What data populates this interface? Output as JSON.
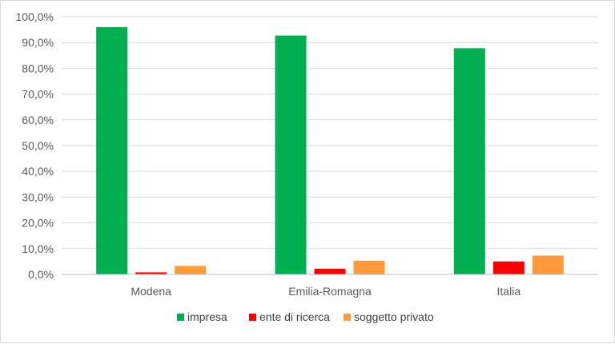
{
  "chart_data": {
    "type": "bar",
    "categories": [
      "Modena",
      "Emilia-Romagna",
      "Italia"
    ],
    "series": [
      {
        "name": "impresa",
        "color": "#00b050",
        "values": [
          96.0,
          92.7,
          87.8
        ]
      },
      {
        "name": "ente di ricerca",
        "color": "#ff0000",
        "values": [
          0.8,
          2.2,
          5.0
        ]
      },
      {
        "name": "soggetto privato",
        "color": "#ff9a3c",
        "values": [
          3.3,
          5.3,
          7.3
        ]
      }
    ],
    "ylim": [
      0,
      100
    ],
    "yticks": [
      0,
      10,
      20,
      30,
      40,
      50,
      60,
      70,
      80,
      90,
      100
    ],
    "ytick_labels": [
      "0,0%",
      "10,0%",
      "20,0%",
      "30,0%",
      "40,0%",
      "50,0%",
      "60,0%",
      "70,0%",
      "80,0%",
      "90,0%",
      "100,0%"
    ],
    "grid": true,
    "legend_position": "bottom"
  }
}
